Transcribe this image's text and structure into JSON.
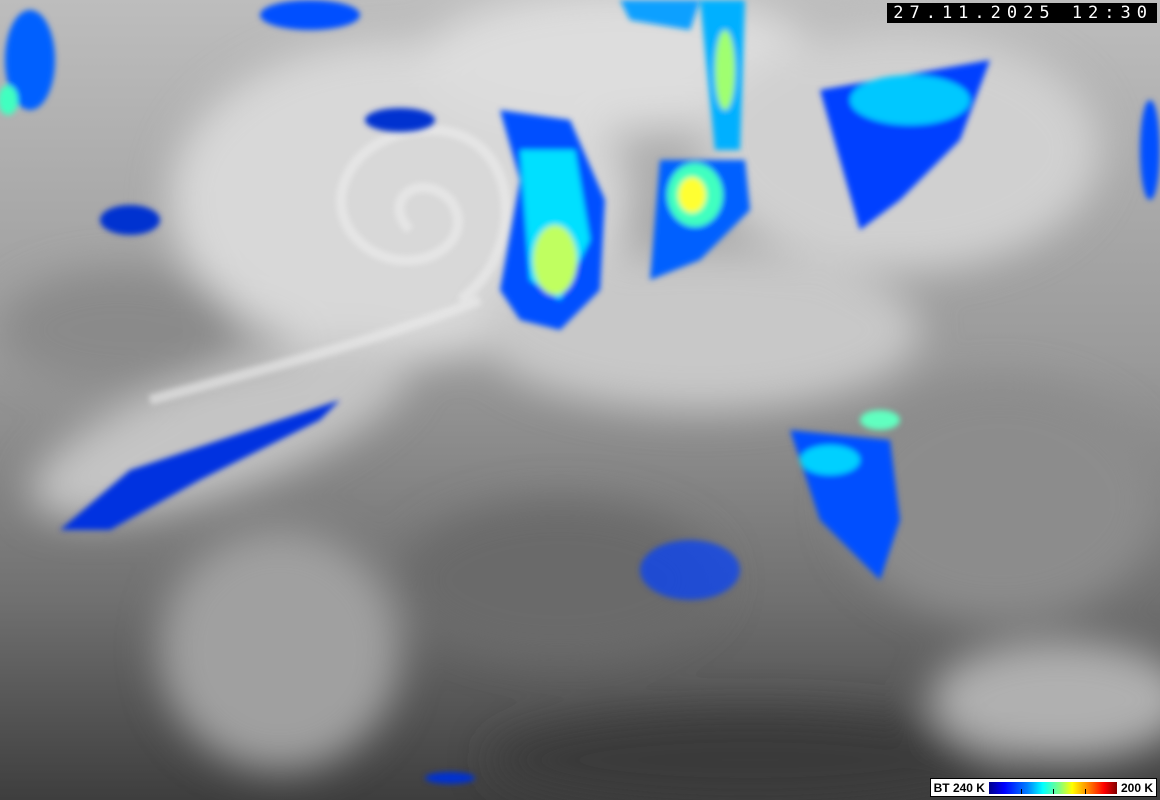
{
  "timestamp": "27.11.2025 12:30",
  "legend": {
    "min_label": "BT 240 K",
    "max_label": "200 K",
    "colors": [
      "#00008c",
      "#0000ff",
      "#0080ff",
      "#00ffff",
      "#80ff80",
      "#ffff00",
      "#ff8000",
      "#ff0000",
      "#800000"
    ]
  }
}
